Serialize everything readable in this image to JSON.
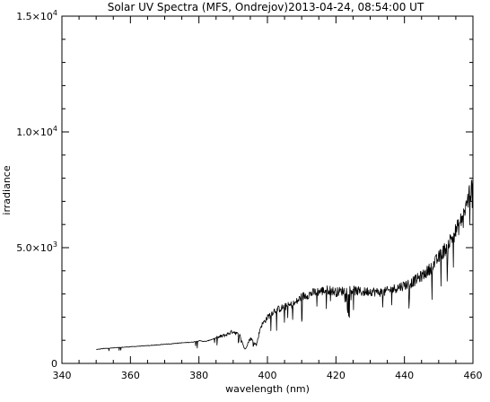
{
  "chart_data": {
    "type": "line",
    "title": "Solar UV Spectra (MFS, Ondrejov)2013-04-24, 08:54:00 UT",
    "xlabel": "wavelength (nm)",
    "ylabel": "irradiance",
    "xlim": [
      340,
      460
    ],
    "ylim": [
      0,
      15000
    ],
    "x_ticks": [
      340,
      360,
      380,
      400,
      420,
      440,
      460
    ],
    "x_tick_labels": [
      "340",
      "360",
      "380",
      "400",
      "420",
      "440",
      "460"
    ],
    "y_ticks": [
      0,
      5000,
      10000,
      15000
    ],
    "y_tick_labels": [
      {
        "mantissa": "0",
        "exp": ""
      },
      {
        "mantissa": "5.0×10",
        "exp": "3"
      },
      {
        "mantissa": "1.0×10",
        "exp": "4"
      },
      {
        "mantissa": "1.5×10",
        "exp": "4"
      }
    ],
    "grid": false,
    "series": [
      {
        "color": "#000000",
        "x": [
          350,
          352,
          354,
          356,
          358,
          360,
          362,
          364,
          366,
          368,
          370,
          372,
          374,
          376,
          378,
          380,
          382,
          384,
          386,
          388,
          390,
          392,
          393.4,
          395,
          396.8,
          398,
          400,
          402,
          404,
          406,
          408,
          410,
          412,
          414,
          416,
          418,
          420,
          422,
          424,
          426,
          428,
          430,
          432,
          434,
          436,
          438,
          440,
          442,
          444,
          446,
          448,
          450,
          452,
          454,
          456,
          458,
          459,
          460
        ],
        "y": [
          600,
          640,
          660,
          680,
          700,
          720,
          740,
          760,
          780,
          800,
          830,
          850,
          880,
          900,
          920,
          980,
          950,
          1050,
          1150,
          1250,
          1400,
          1200,
          600,
          1100,
          800,
          1600,
          2000,
          2300,
          2400,
          2500,
          2600,
          2900,
          3000,
          3100,
          3150,
          3200,
          3100,
          3150,
          3200,
          3150,
          3100,
          3150,
          3100,
          3100,
          3200,
          3300,
          3400,
          3500,
          3700,
          3900,
          4200,
          4600,
          5000,
          5500,
          6000,
          6800,
          7400,
          7600
        ]
      }
    ]
  }
}
